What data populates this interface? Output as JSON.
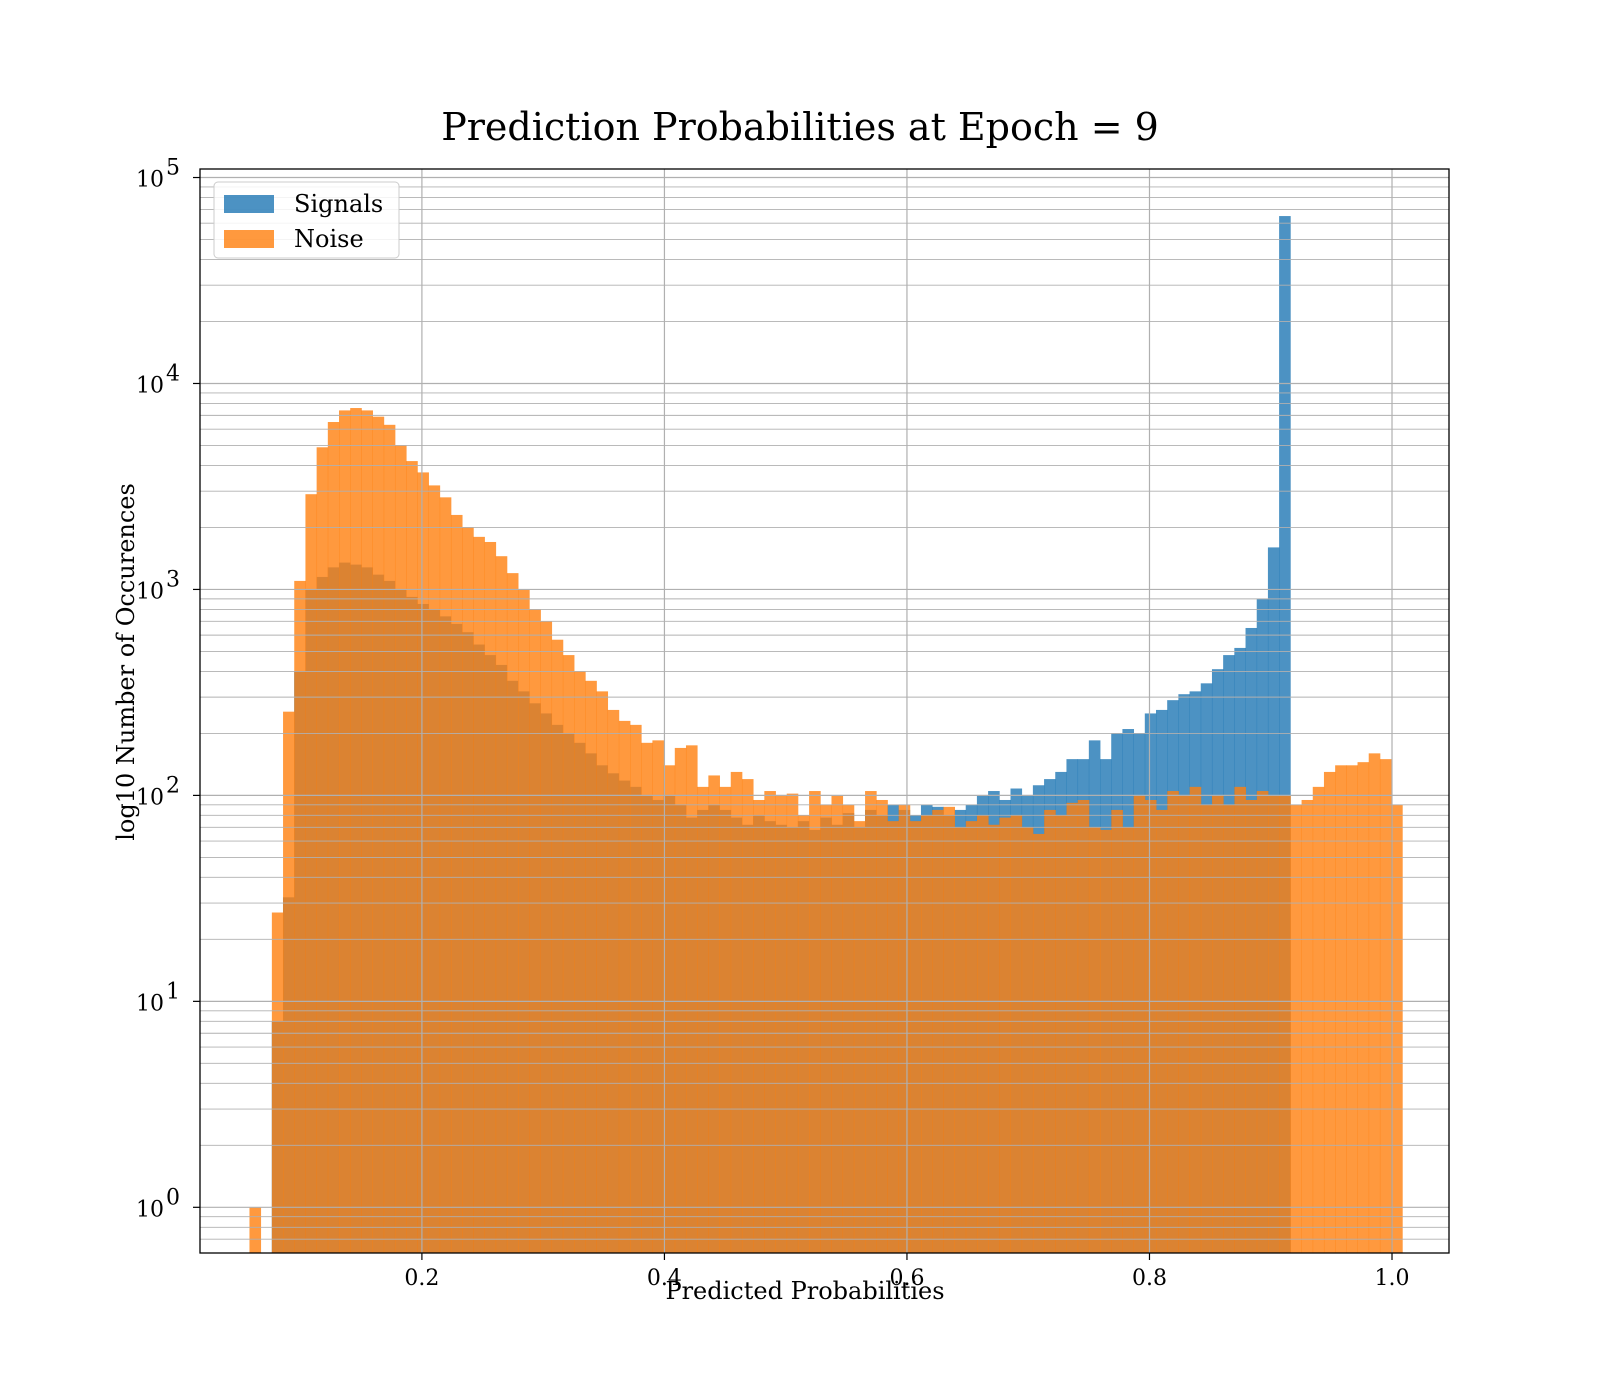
{
  "chart_data": {
    "type": "histogram",
    "title": "Prediction Probabilities at Epoch = 9",
    "xlabel": "Predicted Probabilities",
    "ylabel": "log10 Number of Occurences",
    "xlim": [
      0.017,
      1.047
    ],
    "ylim": [
      0.6,
      110000
    ],
    "yscale": "log",
    "xticks": [
      {
        "value": 0.2,
        "label": "0.2"
      },
      {
        "value": 0.4,
        "label": "0.4"
      },
      {
        "value": 0.6,
        "label": "0.6"
      },
      {
        "value": 0.8,
        "label": "0.8"
      },
      {
        "value": 1.0,
        "label": "1.0"
      }
    ],
    "yticks": [
      {
        "value": 1,
        "base": "10",
        "exp": "0"
      },
      {
        "value": 10,
        "base": "10",
        "exp": "1"
      },
      {
        "value": 100,
        "base": "10",
        "exp": "2"
      },
      {
        "value": 1000,
        "base": "10",
        "exp": "3"
      },
      {
        "value": 10000,
        "base": "10",
        "exp": "4"
      },
      {
        "value": 100000,
        "base": "10",
        "exp": "5"
      }
    ],
    "grid": true,
    "grid_minor_y": true,
    "legend_position": "upper-left",
    "series": [
      {
        "name": "Signals",
        "color": "#1f77b4",
        "opacity": 0.8,
        "bin_start": 0.0762,
        "bin_width": 0.00923,
        "values": [
          8,
          32,
          400,
          1000,
          1150,
          1280,
          1350,
          1320,
          1280,
          1180,
          1100,
          1000,
          920,
          850,
          800,
          740,
          680,
          620,
          540,
          480,
          430,
          360,
          320,
          280,
          250,
          220,
          200,
          180,
          160,
          140,
          128,
          118,
          110,
          100,
          95,
          100,
          90,
          78,
          85,
          90,
          85,
          78,
          72,
          80,
          75,
          72,
          70,
          75,
          68,
          78,
          72,
          82,
          70,
          85,
          80,
          90,
          85,
          80,
          90,
          88,
          80,
          85,
          90,
          100,
          105,
          95,
          108,
          100,
          112,
          120,
          130,
          150,
          150,
          185,
          150,
          200,
          210,
          200,
          250,
          260,
          290,
          310,
          320,
          350,
          410,
          480,
          520,
          650,
          900,
          1600,
          65000
        ]
      },
      {
        "name": "Noise",
        "color": "#ff7f0e",
        "opacity": 0.8,
        "bin_start": 0.0578,
        "bin_width": 0.00923,
        "values": [
          1,
          0,
          27,
          255,
          1100,
          2900,
          4900,
          6500,
          7400,
          7600,
          7400,
          6900,
          6300,
          5000,
          4200,
          3700,
          3200,
          2800,
          2300,
          2000,
          1800,
          1700,
          1450,
          1200,
          1000,
          800,
          700,
          570,
          480,
          400,
          360,
          320,
          260,
          230,
          220,
          180,
          185,
          140,
          170,
          175,
          110,
          125,
          110,
          130,
          120,
          95,
          105,
          100,
          102,
          80,
          105,
          90,
          100,
          90,
          75,
          105,
          95,
          75,
          90,
          75,
          80,
          85,
          88,
          70,
          75,
          80,
          72,
          78,
          80,
          70,
          65,
          85,
          80,
          92,
          95,
          70,
          68,
          85,
          70,
          100,
          95,
          85,
          105,
          100,
          110,
          90,
          100,
          90,
          110,
          95,
          105,
          100,
          100,
          90,
          95,
          110,
          130,
          140,
          140,
          145,
          160,
          150,
          90
        ]
      }
    ]
  }
}
